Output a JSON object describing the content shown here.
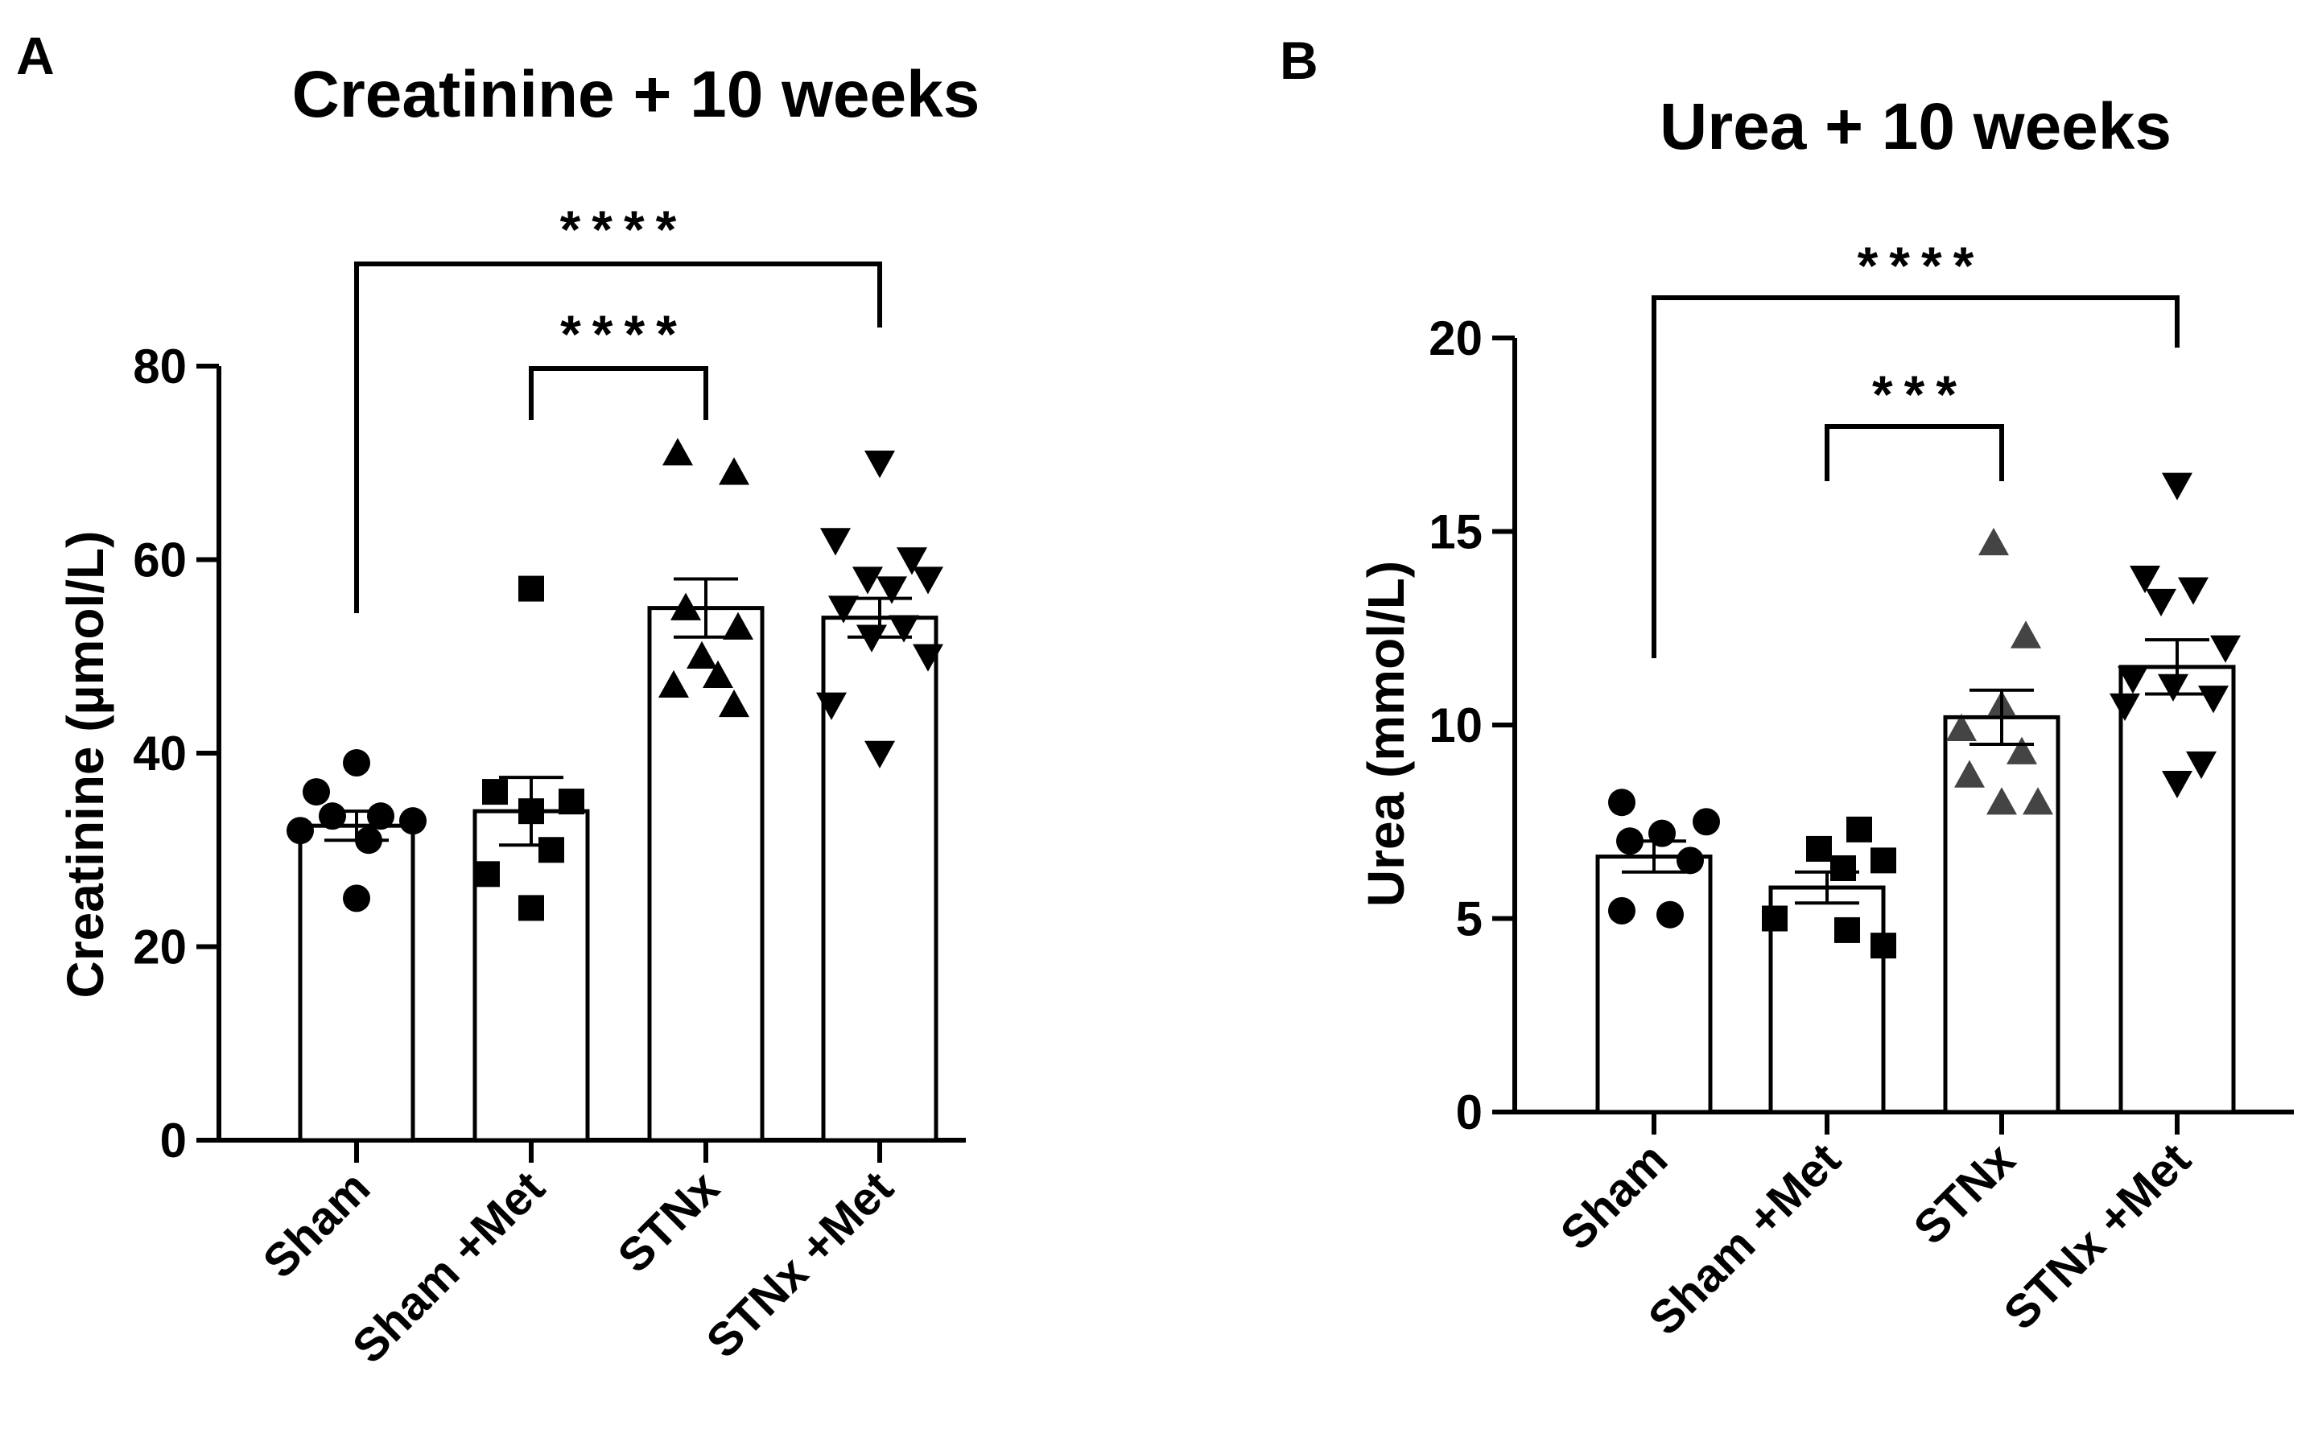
{
  "chart_data": [
    {
      "type": "bar",
      "panel_label": "A",
      "title": "Creatinine  + 10 weeks",
      "xlabel": "",
      "ylabel": "Creatinine (µmol/L)",
      "ylim": [
        0,
        80
      ],
      "yticks": [
        0,
        20,
        40,
        60,
        80
      ],
      "categories": [
        "Sham",
        "Sham +Met",
        "STNx",
        "STNx +Met"
      ],
      "markers": [
        "circle",
        "square",
        "triangle-up",
        "triangle-down"
      ],
      "values": [
        32.5,
        34.0,
        55.0,
        54.0
      ],
      "sem": [
        1.5,
        3.5,
        3.0,
        2.0
      ],
      "points": [
        [
          39,
          36,
          33.5,
          33.5,
          33,
          32,
          31,
          25
        ],
        [
          57,
          36,
          35,
          34,
          30,
          27.5,
          24
        ],
        [
          71,
          69,
          55,
          53,
          50,
          48,
          47,
          45
        ],
        [
          70,
          62,
          60,
          58,
          58,
          57,
          55,
          53,
          52,
          50,
          45,
          40
        ]
      ],
      "comparisons": [
        {
          "from": 0,
          "to": 3,
          "label": "****"
        },
        {
          "from": 1,
          "to": 2,
          "label": "****"
        }
      ]
    },
    {
      "type": "bar",
      "panel_label": "B",
      "title": "Urea  + 10 weeks",
      "xlabel": "",
      "ylabel": "Urea  (mmol/L)",
      "ylim": [
        0,
        20
      ],
      "yticks": [
        0,
        5,
        10,
        15,
        20
      ],
      "categories": [
        "Sham",
        "Sham +Met",
        "STNx",
        "STNx +Met"
      ],
      "markers": [
        "circle",
        "square",
        "triangle-up",
        "triangle-down"
      ],
      "values": [
        6.6,
        5.8,
        10.2,
        11.5
      ],
      "sem": [
        0.4,
        0.4,
        0.7,
        0.7
      ],
      "points": [
        [
          8.0,
          7.5,
          7.2,
          7.0,
          6.5,
          5.2,
          5.1
        ],
        [
          7.3,
          6.8,
          6.5,
          6.3,
          5.0,
          4.7,
          4.3
        ],
        [
          14.7,
          12.3,
          10.5,
          9.9,
          9.3,
          8.7,
          8.0,
          8.0
        ],
        [
          16.2,
          13.8,
          13.5,
          13.2,
          12.0,
          11.2,
          11.0,
          10.7,
          10.5,
          9.0,
          8.5
        ]
      ],
      "comparisons": [
        {
          "from": 0,
          "to": 3,
          "label": "****"
        },
        {
          "from": 1,
          "to": 2,
          "label": "***"
        }
      ]
    }
  ]
}
